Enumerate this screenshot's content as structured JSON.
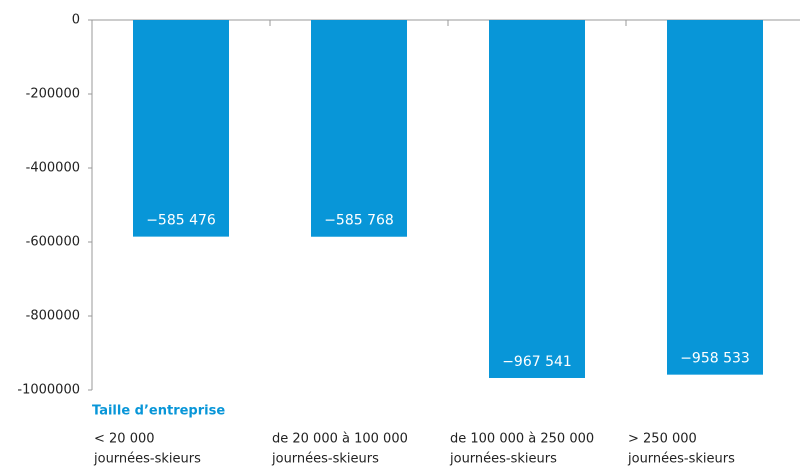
{
  "chart_data": {
    "type": "bar",
    "xlabel": "Taille d’entreprise",
    "categories": [
      [
        "< 20 000",
        "journées-skieurs"
      ],
      [
        "de 20 000 à 100 000",
        "journées-skieurs"
      ],
      [
        "de 100 000 à 250 000",
        "journées-skieurs"
      ],
      [
        "> 250 000",
        "journées-skieurs"
      ]
    ],
    "values": [
      -585476,
      -585768,
      -967541,
      -958533
    ],
    "value_labels": [
      "−585 476",
      "−585 768",
      "−967 541",
      "−958 533"
    ],
    "color": "#0896d8",
    "ylim": [
      -1000000,
      0
    ],
    "yticks": [
      0,
      -200000,
      -400000,
      -600000,
      -800000,
      -1000000
    ],
    "grid": false
  }
}
